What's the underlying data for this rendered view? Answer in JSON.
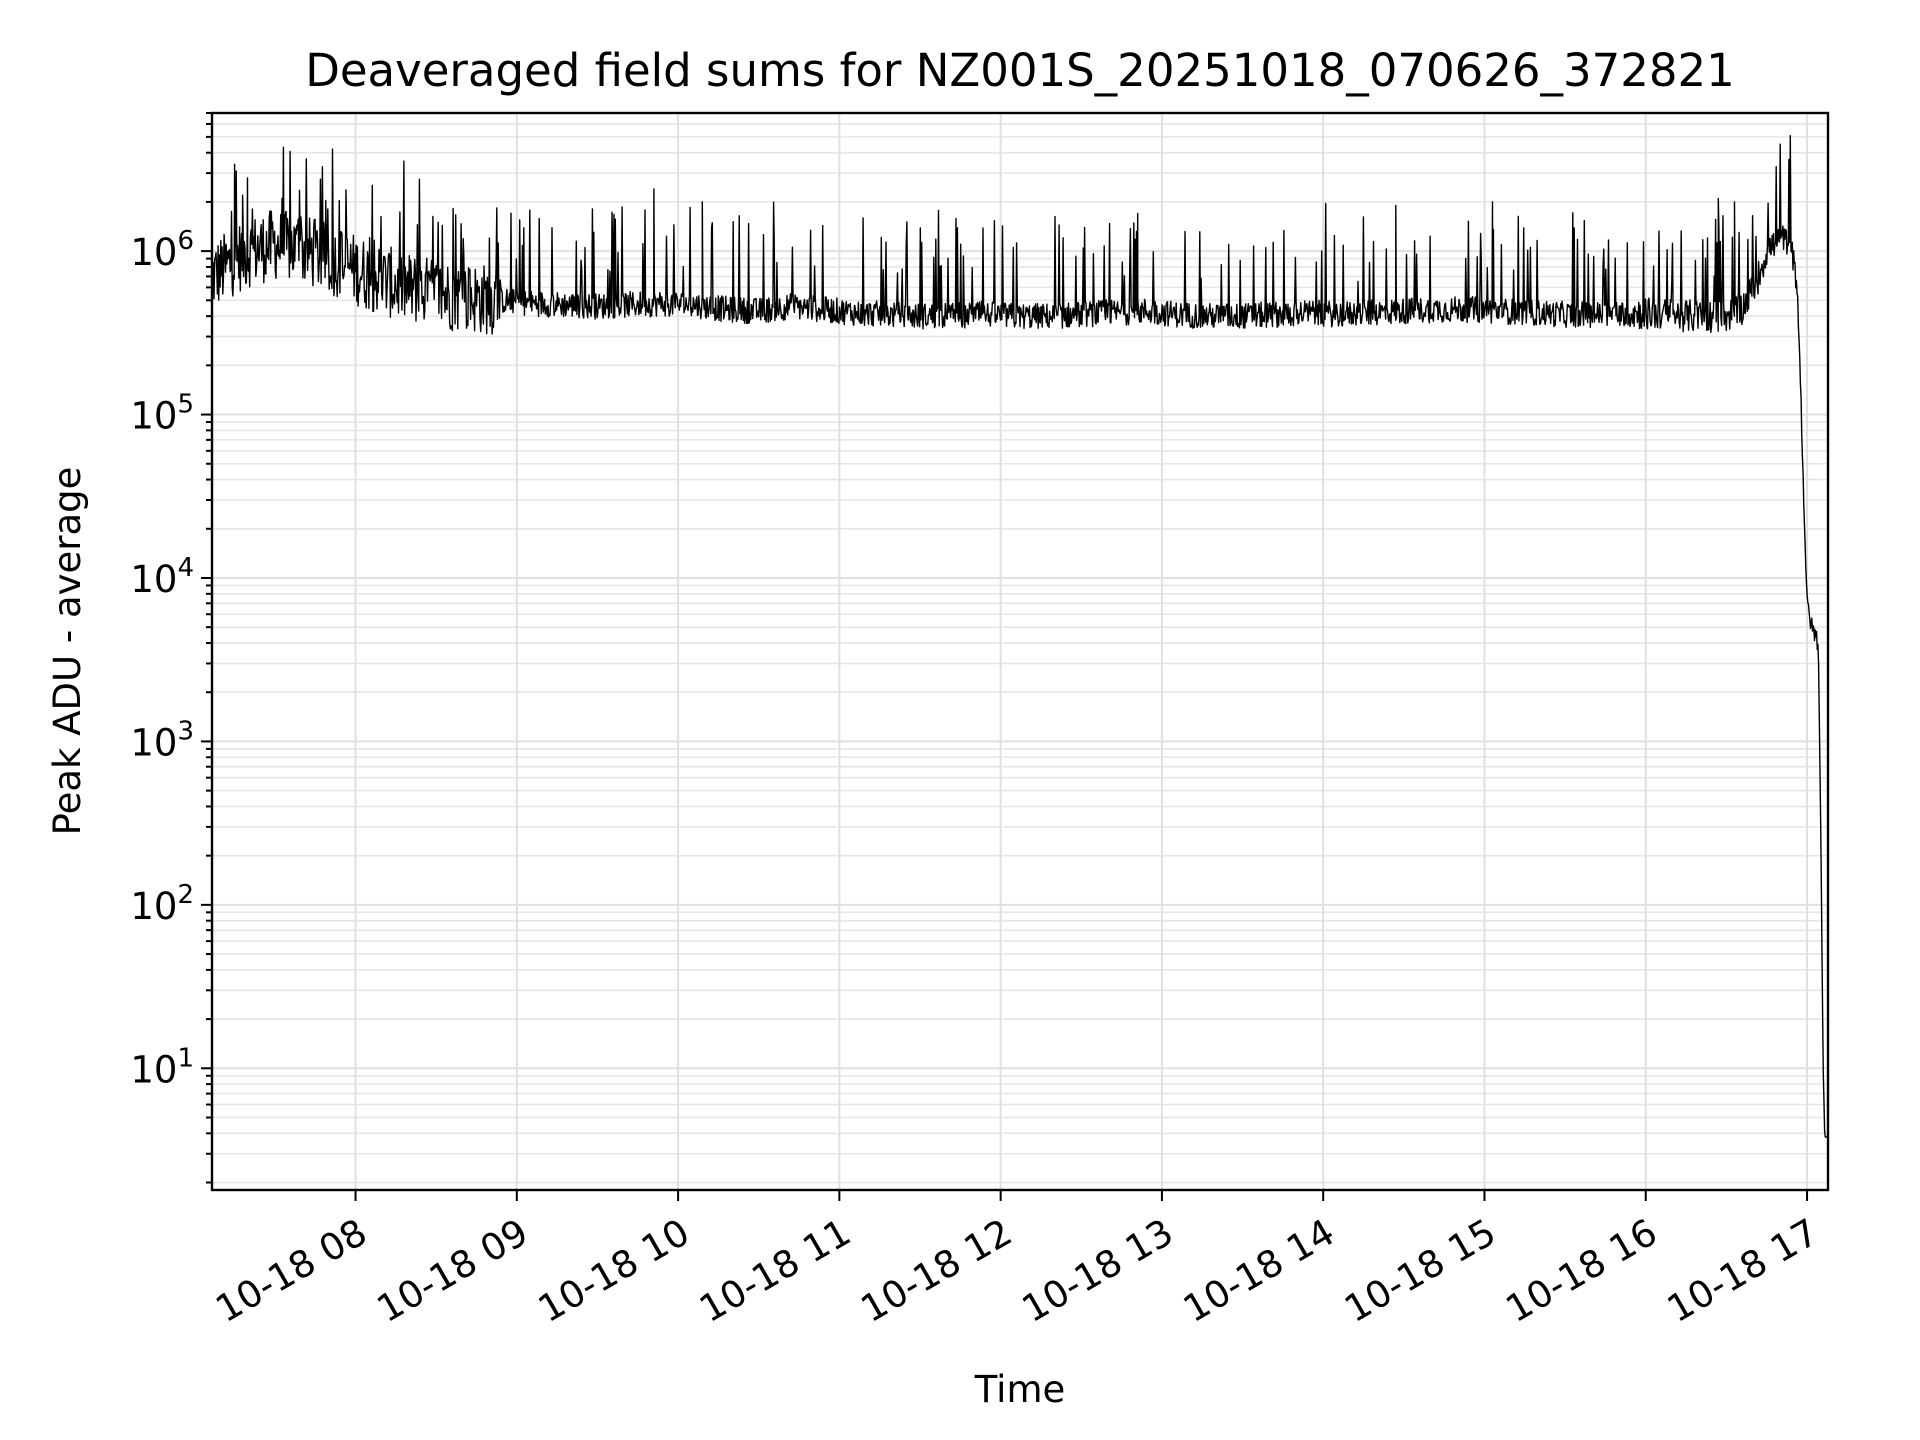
{
  "chart_data": {
    "type": "line",
    "title": "Deaveraged field sums for NZ001S_20251018_070626_372821",
    "xlabel": "Time",
    "ylabel": "Peak ADU - average",
    "yscale": "log",
    "xlim_hours": [
      7.11,
      17.13
    ],
    "ylim": [
      1.8,
      7000000
    ],
    "grid": true,
    "x_ticks": [
      {
        "hour": 8,
        "label": "10-18 08"
      },
      {
        "hour": 9,
        "label": "10-18 09"
      },
      {
        "hour": 10,
        "label": "10-18 10"
      },
      {
        "hour": 11,
        "label": "10-18 11"
      },
      {
        "hour": 12,
        "label": "10-18 12"
      },
      {
        "hour": 13,
        "label": "10-18 13"
      },
      {
        "hour": 14,
        "label": "10-18 14"
      },
      {
        "hour": 15,
        "label": "10-18 15"
      },
      {
        "hour": 16,
        "label": "10-18 16"
      },
      {
        "hour": 17,
        "label": "10-18 17"
      }
    ],
    "y_ticks": [
      {
        "value": 10,
        "base": "10",
        "exp": "1"
      },
      {
        "value": 100,
        "base": "10",
        "exp": "2"
      },
      {
        "value": 1000,
        "base": "10",
        "exp": "3"
      },
      {
        "value": 10000,
        "base": "10",
        "exp": "4"
      },
      {
        "value": 100000,
        "base": "10",
        "exp": "5"
      },
      {
        "value": 1000000,
        "base": "10",
        "exp": "6"
      }
    ],
    "series": [
      {
        "name": "deaveraged field sum",
        "x_hours": [
          7.11,
          7.2,
          7.25,
          7.35,
          7.5,
          7.7,
          7.9,
          8.1,
          8.3,
          8.5,
          8.7,
          8.9,
          9.1,
          9.3,
          9.5,
          9.7,
          9.9,
          10.1,
          10.3,
          10.5,
          10.7,
          10.9,
          11.1,
          11.3,
          11.5,
          11.7,
          11.9,
          12.1,
          12.3,
          12.5,
          12.7,
          12.9,
          13.1,
          13.3,
          13.5,
          13.7,
          13.9,
          14.1,
          14.3,
          14.5,
          14.7,
          14.9,
          15.1,
          15.3,
          15.5,
          15.7,
          15.9,
          16.1,
          16.3,
          16.5,
          16.6,
          16.7,
          16.75,
          16.8,
          16.85,
          16.9,
          16.94,
          16.96,
          16.98,
          17.0,
          17.03,
          17.05,
          17.07,
          17.08,
          17.09,
          17.1,
          17.11,
          17.13
        ],
        "values": [
          700000,
          800000,
          900000,
          1000000,
          1100000,
          1000000,
          850000,
          700000,
          600000,
          550000,
          520000,
          500000,
          480000,
          470000,
          460000,
          470000,
          480000,
          470000,
          440000,
          430000,
          460000,
          440000,
          420000,
          410000,
          400000,
          405000,
          410000,
          400000,
          400000,
          410000,
          420000,
          430000,
          410000,
          400000,
          400000,
          410000,
          420000,
          410000,
          420000,
          430000,
          440000,
          440000,
          430000,
          420000,
          410000,
          410000,
          420000,
          410000,
          400000,
          400000,
          450000,
          700000,
          1000000,
          1100000,
          1200000,
          1100000,
          600000,
          150000,
          30000,
          7000,
          5000,
          4500,
          4000,
          800,
          100,
          10,
          3.8,
          3.8
        ]
      }
    ],
    "spikes": [
      {
        "hour": 7.25,
        "value": 3400000
      },
      {
        "hour": 7.3,
        "value": 2200000
      },
      {
        "hour": 7.33,
        "value": 2800000
      },
      {
        "hour": 9.85,
        "value": 2400000
      },
      {
        "hour": 10.15,
        "value": 2000000
      },
      {
        "hour": 12.85,
        "value": 1700000
      },
      {
        "hour": 14.45,
        "value": 1900000
      },
      {
        "hour": 15.05,
        "value": 2000000
      },
      {
        "hour": 16.45,
        "value": 2100000
      },
      {
        "hour": 16.55,
        "value": 2000000
      }
    ]
  }
}
